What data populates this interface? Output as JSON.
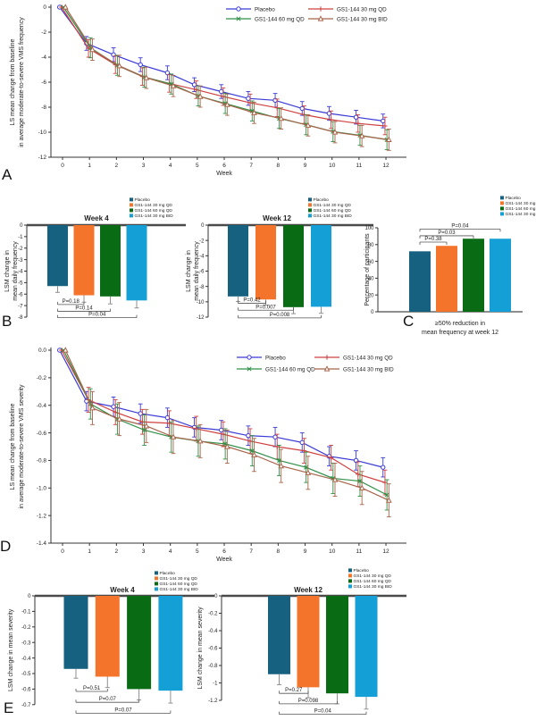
{
  "panel_letters": [
    "A",
    "B",
    "C",
    "D",
    "E"
  ],
  "palette": {
    "line_blue": "#3a3ad6",
    "line_red": "#cf4040",
    "line_green": "#2f8f46",
    "line_brown": "#a8644a",
    "bar_teal": "#16617f",
    "bar_orange": "#f4742c",
    "bar_green": "#0a6b15",
    "bar_cyan": "#14a0d6",
    "error_gray": "#909090",
    "axis_gray": "#4a4a4a"
  },
  "chart_data": [
    {
      "id": "A",
      "type": "line",
      "x": [
        0,
        1,
        2,
        3,
        4,
        5,
        6,
        7,
        8,
        9,
        10,
        11,
        12
      ],
      "xlabel": "Week",
      "ylabel": [
        "LS mean change from baseline",
        "in average moderate-to-severe VMS frequency"
      ],
      "ylim": [
        -12,
        0
      ],
      "yticks": [
        0,
        -2,
        -4,
        -6,
        -8,
        -10,
        -12
      ],
      "ytick_labels": [
        "0",
        "-2",
        "-4",
        "-6",
        "-8",
        "-10",
        "-12"
      ],
      "series": [
        {
          "name": "Placebo",
          "color": "#3a3ad6",
          "marker": "circle",
          "values": [
            0,
            -2.9,
            -3.8,
            -4.6,
            -5.25,
            -6.2,
            -6.75,
            -7.3,
            -7.45,
            -8.1,
            -8.5,
            -8.8,
            -9.1
          ],
          "err": 0.55
        },
        {
          "name": "GS1-144 30 mg QD",
          "color": "#cf4040",
          "marker": "plus",
          "values": [
            0,
            -3.3,
            -4.6,
            -5.55,
            -6.1,
            -6.6,
            -7.15,
            -7.65,
            -8.05,
            -8.6,
            -9.0,
            -9.3,
            -9.5
          ],
          "err": 0.7
        },
        {
          "name": "GS1-144 60 mg QD",
          "color": "#2f8f46",
          "marker": "x",
          "values": [
            0,
            -3.25,
            -4.65,
            -5.6,
            -6.15,
            -7.1,
            -7.7,
            -8.3,
            -8.9,
            -9.4,
            -9.95,
            -10.25,
            -10.6
          ],
          "err": 0.8
        },
        {
          "name": "GS1-144 30 mg BID",
          "color": "#a8644a",
          "marker": "triangle",
          "values": [
            0,
            -3.4,
            -4.7,
            -5.65,
            -6.3,
            -7.15,
            -7.8,
            -8.45,
            -8.9,
            -9.45,
            -10.0,
            -10.3,
            -10.6
          ],
          "err": 0.85
        }
      ],
      "legend_order": [
        0,
        2,
        1,
        3
      ]
    },
    {
      "id": "B1",
      "type": "bar",
      "title": "Week 4",
      "ylabel": [
        "LSM change in",
        "mean daily frequency"
      ],
      "yext": -8,
      "yticks": [
        0,
        -1,
        -2,
        -3,
        -4,
        -5,
        -6,
        -7,
        -8
      ],
      "ytick_labels": [
        "0",
        "-1",
        "-2",
        "-3",
        "-4",
        "-5",
        "-6",
        "-7",
        "-8"
      ],
      "categories": [
        "Placebo",
        "GS1-144 30 mg QD",
        "GS1-144 60 mg QD",
        "GS1-144 30 mg BID"
      ],
      "values": [
        -5.3,
        -6.1,
        -6.2,
        -6.55
      ],
      "errors": [
        0.55,
        0.6,
        0.65,
        0.65
      ],
      "colors": [
        "#16617f",
        "#f4742c",
        "#0a6b15",
        "#14a0d6"
      ],
      "annotations": [
        {
          "label": "P=0.18",
          "to": 1,
          "y": -6.9
        },
        {
          "label": "P=0.14",
          "to": 2,
          "y": -7.5
        },
        {
          "label": "P=0.04",
          "to": 3,
          "y": -8.05
        }
      ]
    },
    {
      "id": "B2",
      "type": "bar",
      "title": "Week 12",
      "ylabel": [
        "LSM change in",
        "mean daily frequency"
      ],
      "yext": -12,
      "yticks": [
        0,
        -2,
        -4,
        -6,
        -8,
        -10,
        -12
      ],
      "ytick_labels": [
        "0",
        "-2",
        "-4",
        "-6",
        "-8",
        "-10",
        "-12"
      ],
      "categories": [
        "Placebo",
        "GS1-144 30 mg QD",
        "GS1-144 60 mg QD",
        "GS1-144 30 mg BID"
      ],
      "values": [
        -9.3,
        -9.7,
        -10.7,
        -10.65
      ],
      "errors": [
        0.65,
        0.75,
        0.85,
        0.85
      ],
      "colors": [
        "#16617f",
        "#f4742c",
        "#0a6b15",
        "#14a0d6"
      ],
      "annotations": [
        {
          "label": "P=0.42",
          "to": 1,
          "y": -10.2
        },
        {
          "label": "P=0.007",
          "to": 2,
          "y": -11.1
        },
        {
          "label": "P=0.008",
          "to": 3,
          "y": -12.1
        }
      ]
    },
    {
      "id": "C",
      "type": "bar",
      "ylabel": [
        "Percentage of participants"
      ],
      "xlabel": [
        "≥50% reduction in",
        "mean frequency at week 12"
      ],
      "yext": 100,
      "yticks": [
        0,
        20,
        40,
        60,
        80,
        100
      ],
      "ytick_labels": [
        "0",
        "20",
        "40",
        "60",
        "80",
        "100"
      ],
      "categories": [
        "Placebo",
        "GS1-144 30 mg QD",
        "GS1-144 60 mg QD",
        "GS1-144 30 mg BID"
      ],
      "values": [
        72,
        78.5,
        87,
        87
      ],
      "errors": null,
      "colors": [
        "#16617f",
        "#f4742c",
        "#0a6b15",
        "#14a0d6"
      ],
      "annotations": [
        {
          "label": "P=0.38",
          "to": 1,
          "y": 83
        },
        {
          "label": "P=0.03",
          "to": 2,
          "y": 90.5
        },
        {
          "label": "P=0.04",
          "to": 3,
          "y": 98.5
        }
      ]
    },
    {
      "id": "D",
      "type": "line",
      "x": [
        0,
        1,
        2,
        3,
        4,
        5,
        6,
        7,
        8,
        9,
        10,
        11,
        12
      ],
      "xlabel": "Week",
      "ylabel": [
        "LS mean change from baseline",
        "in average moderate-to-severe VMS severity"
      ],
      "ylim": [
        -1.4,
        0
      ],
      "yticks": [
        0,
        -0.2,
        -0.4,
        -0.6,
        -0.8,
        -1.0,
        -1.2,
        -1.4
      ],
      "ytick_labels": [
        "0.0",
        "-0.2",
        "-0.4",
        "-0.6",
        "-0.8",
        "-1.0",
        "-1.2",
        "-1.4"
      ],
      "series": [
        {
          "name": "Placebo",
          "color": "#3a3ad6",
          "marker": "circle",
          "values": [
            0,
            -0.37,
            -0.41,
            -0.46,
            -0.49,
            -0.56,
            -0.58,
            -0.62,
            -0.63,
            -0.67,
            -0.77,
            -0.8,
            -0.85
          ],
          "err": 0.07
        },
        {
          "name": "GS1-144 30 mg QD",
          "color": "#cf4040",
          "marker": "plus",
          "values": [
            0,
            -0.36,
            -0.45,
            -0.52,
            -0.53,
            -0.57,
            -0.61,
            -0.66,
            -0.7,
            -0.73,
            -0.78,
            -0.9,
            -0.96
          ],
          "err": 0.09
        },
        {
          "name": "GS1-144 60 mg QD",
          "color": "#2f8f46",
          "marker": "x",
          "values": [
            0,
            -0.39,
            -0.5,
            -0.58,
            -0.63,
            -0.66,
            -0.68,
            -0.73,
            -0.8,
            -0.85,
            -0.93,
            -0.95,
            -1.05
          ],
          "err": 0.11
        },
        {
          "name": "GS1-144 30 mg BID",
          "color": "#a8644a",
          "marker": "triangle",
          "values": [
            0,
            -0.42,
            -0.5,
            -0.55,
            -0.63,
            -0.66,
            -0.7,
            -0.76,
            -0.84,
            -0.89,
            -0.94,
            -1.0,
            -1.09
          ],
          "err": 0.12
        }
      ],
      "legend_order": [
        0,
        2,
        1,
        3
      ]
    },
    {
      "id": "E1",
      "type": "bar",
      "title": "Week 4",
      "ylabel": [
        "LSM change in mean severity"
      ],
      "yext": -0.7,
      "yticks": [
        0,
        -0.1,
        -0.2,
        -0.3,
        -0.4,
        -0.5,
        -0.6,
        -0.7
      ],
      "ytick_labels": [
        "0",
        "-0.1",
        "-0.2",
        "-0.3",
        "-0.4",
        "-0.5",
        "-0.6",
        "-0.7"
      ],
      "categories": [
        "Placebo",
        "GS1-144 30 mg QD",
        "GS1-144 60 mg QD",
        "GS1-144 30 mg BID"
      ],
      "values": [
        -0.47,
        -0.52,
        -0.6,
        -0.61
      ],
      "errors": [
        0.06,
        0.07,
        0.07,
        0.08
      ],
      "colors": [
        "#16617f",
        "#f4742c",
        "#0a6b15",
        "#14a0d6"
      ],
      "annotations": [
        {
          "label": "P=0.51",
          "to": 1,
          "y": -0.615
        },
        {
          "label": "P=0.07",
          "to": 2,
          "y": -0.685
        },
        {
          "label": "P=0.07",
          "to": 3,
          "y": -0.755
        }
      ]
    },
    {
      "id": "E2",
      "type": "bar",
      "title": "Week 12",
      "ylabel": [
        "LSM change in mean severity"
      ],
      "yext": -1.2,
      "yticks": [
        0,
        -0.2,
        -0.4,
        -0.6,
        -0.8,
        -1.0,
        -1.2
      ],
      "ytick_labels": [
        "0",
        "-0.2",
        "-0.4",
        "-0.6",
        "-0.8",
        "-1",
        "-1.2"
      ],
      "categories": [
        "Placebo",
        "GS1-144 30 mg QD",
        "GS1-144 60 mg QD",
        "GS1-144 30 mg BID"
      ],
      "values": [
        -0.9,
        -1.05,
        -1.12,
        -1.16
      ],
      "errors": [
        0.12,
        0.12,
        0.12,
        0.14
      ],
      "colors": [
        "#16617f",
        "#f4742c",
        "#0a6b15",
        "#14a0d6"
      ],
      "annotations": [
        {
          "label": "P=0.27",
          "to": 1,
          "y": -1.12
        },
        {
          "label": "P=0.098",
          "to": 2,
          "y": -1.24
        },
        {
          "label": "P=0.04",
          "to": 3,
          "y": -1.36
        }
      ]
    }
  ]
}
